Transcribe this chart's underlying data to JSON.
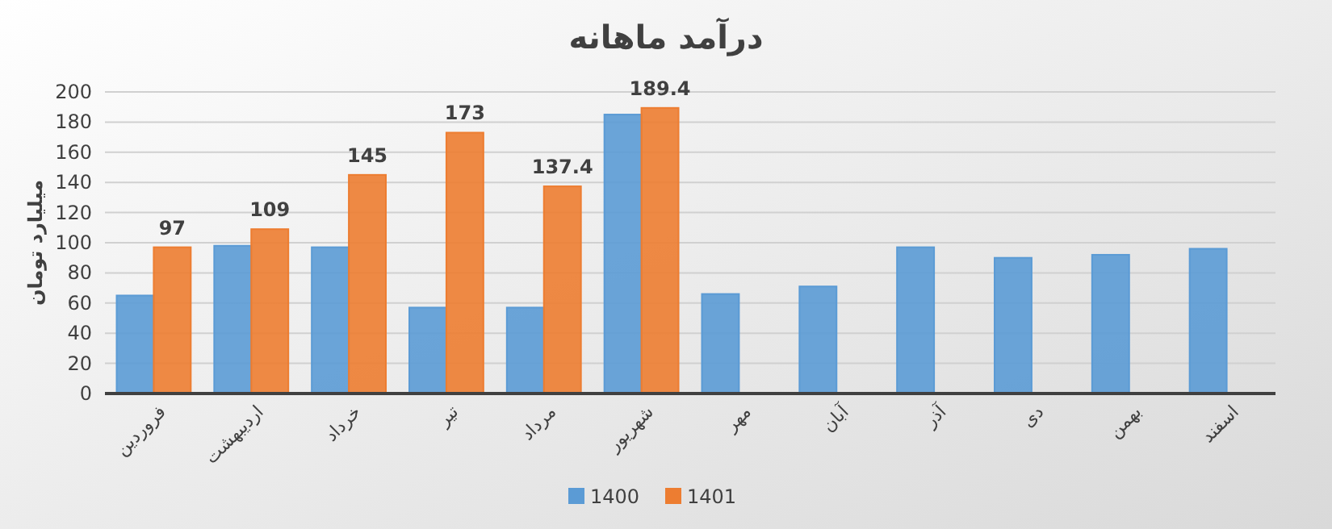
{
  "chart_data": {
    "type": "bar",
    "title": "درآمد ماهانه",
    "ylabel": "میلیارد تومان",
    "categories": [
      "فروردین",
      "اردیبهشت",
      "خرداد",
      "تیر",
      "مرداد",
      "شهریور",
      "مهر",
      "آبان",
      "آذر",
      "دی",
      "بهمن",
      "اسفند"
    ],
    "series": [
      {
        "name": "1400",
        "color": "#5b9bd5",
        "values": [
          65,
          98,
          97,
          57,
          57,
          185,
          66,
          71,
          97,
          90,
          92,
          96
        ]
      },
      {
        "name": "1401",
        "color": "#ed7d31",
        "values": [
          97,
          109,
          145,
          173,
          137.4,
          189.4,
          null,
          null,
          null,
          null,
          null,
          null
        ],
        "value_labels": [
          "97",
          "109",
          "145",
          "173",
          "137.4",
          "189.4",
          null,
          null,
          null,
          null,
          null,
          null
        ]
      }
    ],
    "ylim": [
      0,
      200
    ],
    "yticks": [
      0,
      20,
      40,
      60,
      80,
      100,
      120,
      140,
      160,
      180,
      200
    ],
    "grid": "y",
    "legend": "bottom"
  }
}
